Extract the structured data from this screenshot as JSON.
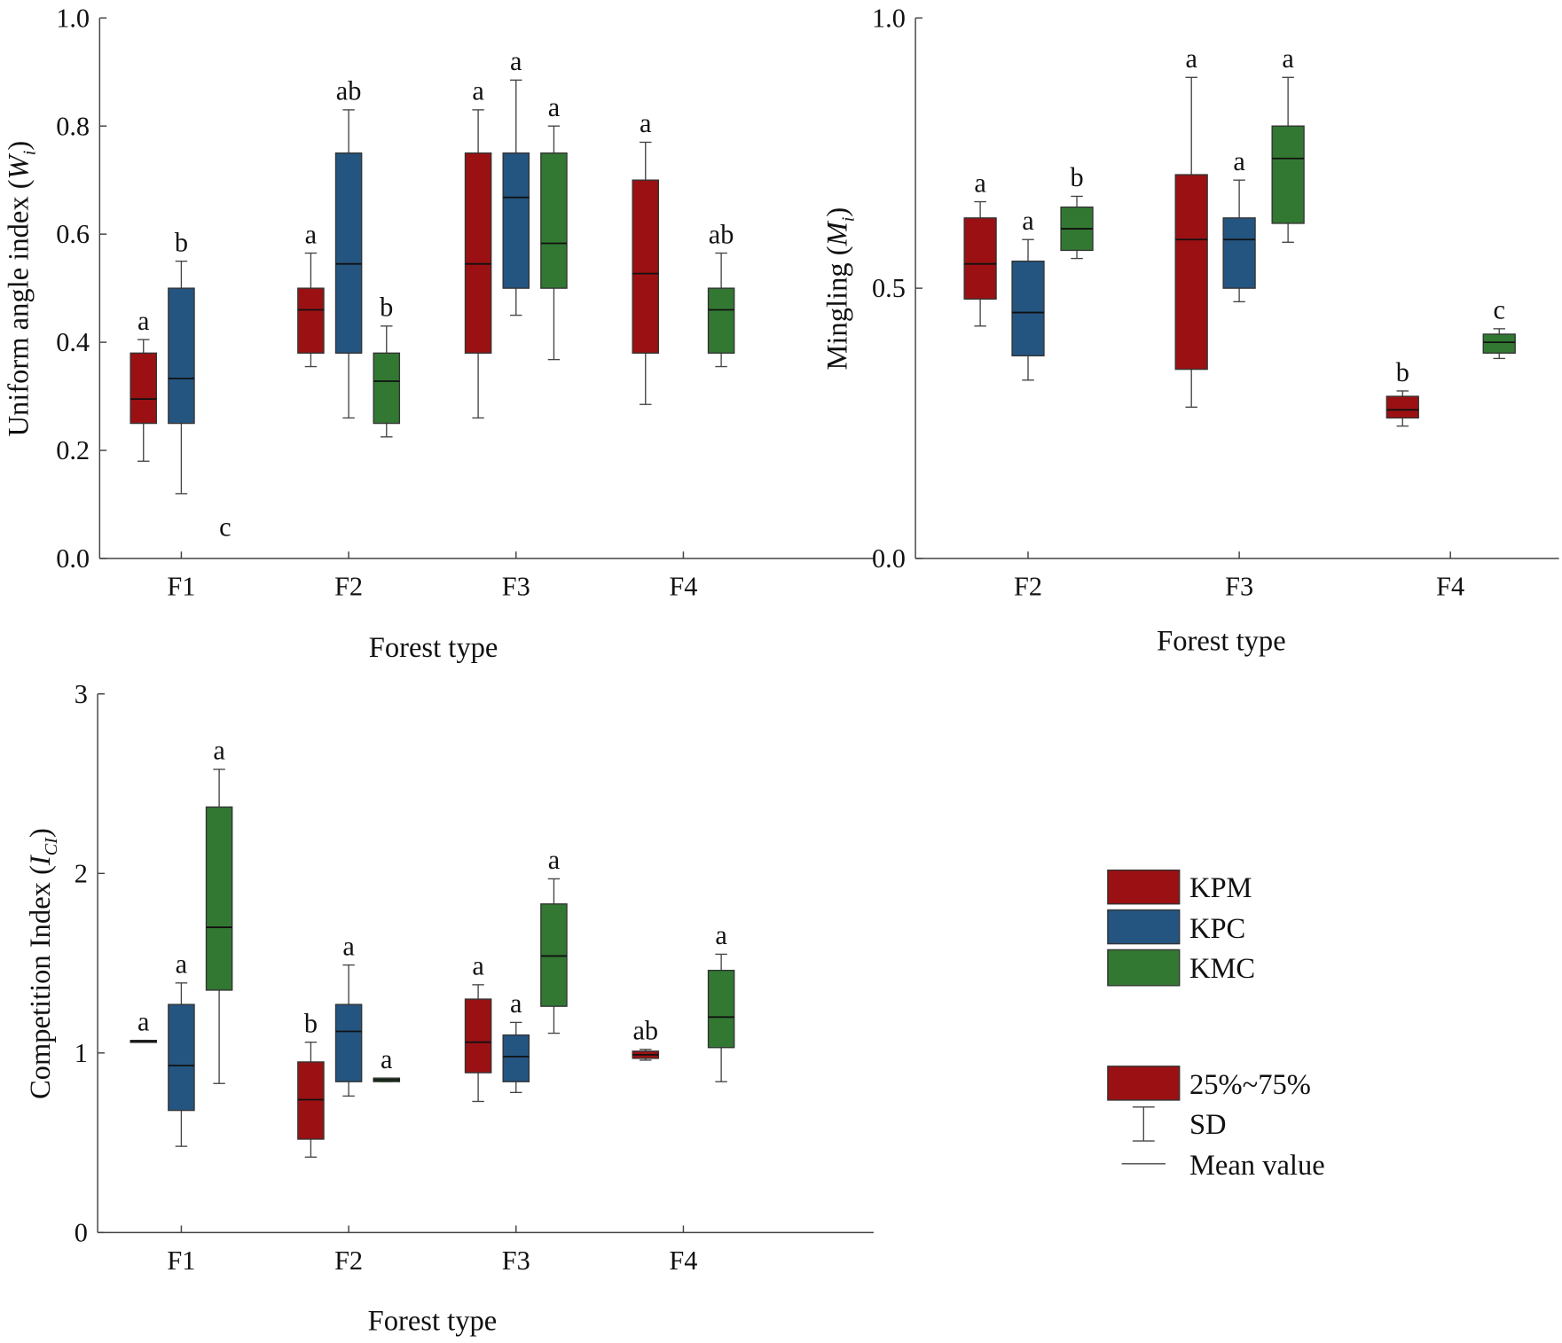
{
  "colors": {
    "KPM": "#9b1113",
    "KPC": "#245581",
    "KMC": "#327832"
  },
  "legend": {
    "series": [
      "KPM",
      "KPC",
      "KMC"
    ],
    "box_label": "25%~75%",
    "sd_label": "SD",
    "mean_label": "Mean value"
  },
  "chart_data": [
    {
      "type": "box",
      "xlabel": "Forest type",
      "ylabel": {
        "prefix": "Uniform angle index (",
        "var": "W",
        "sub": "i",
        "suffix": ")"
      },
      "ylim": [
        0,
        1.0
      ],
      "yticks": [
        "0.0",
        "0.2",
        "0.4",
        "0.6",
        "0.8",
        "1.0"
      ],
      "yticks_values": [
        0,
        0.2,
        0.4,
        0.6,
        0.8,
        1.0
      ],
      "categories": [
        "F1",
        "F2",
        "F3",
        "F4"
      ],
      "series": [
        {
          "name": "KPM",
          "boxes": [
            {
              "cat": "F1",
              "low": 0.18,
              "q1": 0.25,
              "mean": 0.295,
              "q3": 0.38,
              "high": 0.405,
              "sig": "a"
            },
            {
              "cat": "F2",
              "low": 0.355,
              "q1": 0.38,
              "mean": 0.46,
              "q3": 0.5,
              "high": 0.565,
              "sig": "a"
            },
            {
              "cat": "F3",
              "low": 0.26,
              "q1": 0.38,
              "mean": 0.545,
              "q3": 0.75,
              "high": 0.83,
              "sig": "a"
            },
            {
              "cat": "F4",
              "low": 0.285,
              "q1": 0.38,
              "mean": 0.527,
              "q3": 0.7,
              "high": 0.77,
              "sig": "a"
            }
          ]
        },
        {
          "name": "KPC",
          "boxes": [
            {
              "cat": "F1",
              "low": 0.12,
              "q1": 0.25,
              "mean": 0.333,
              "q3": 0.5,
              "high": 0.55,
              "sig": "b"
            },
            {
              "cat": "F2",
              "low": 0.26,
              "q1": 0.38,
              "mean": 0.545,
              "q3": 0.75,
              "high": 0.83,
              "sig": "ab"
            },
            {
              "cat": "F3",
              "low": 0.45,
              "q1": 0.5,
              "mean": 0.668,
              "q3": 0.75,
              "high": 0.885,
              "sig": "a"
            }
          ]
        },
        {
          "name": "KMC",
          "boxes": [
            {
              "cat": "F1",
              "sig": "c",
              "sig_at": 0.06
            },
            {
              "cat": "F2",
              "low": 0.225,
              "q1": 0.25,
              "mean": 0.328,
              "q3": 0.38,
              "high": 0.43,
              "sig": "b"
            },
            {
              "cat": "F3",
              "low": 0.368,
              "q1": 0.5,
              "mean": 0.583,
              "q3": 0.75,
              "high": 0.8,
              "sig": "a"
            },
            {
              "cat": "F4",
              "low": 0.355,
              "q1": 0.38,
              "mean": 0.46,
              "q3": 0.5,
              "high": 0.565,
              "sig": "ab"
            }
          ]
        }
      ]
    },
    {
      "type": "box",
      "xlabel": "Forest type",
      "ylabel": {
        "prefix": "Mingling (",
        "var": "M",
        "sub": "i",
        "suffix": ")"
      },
      "ylim": [
        0,
        1.0
      ],
      "yticks": [
        "0.0",
        "0.5",
        "1.0"
      ],
      "yticks_values": [
        0,
        0.5,
        1.0
      ],
      "categories": [
        "F2",
        "F3",
        "F4"
      ],
      "series": [
        {
          "name": "KPM",
          "boxes": [
            {
              "cat": "F2",
              "low": 0.43,
              "q1": 0.48,
              "mean": 0.545,
              "q3": 0.63,
              "high": 0.66,
              "sig": "a"
            },
            {
              "cat": "F3",
              "low": 0.28,
              "q1": 0.35,
              "mean": 0.59,
              "q3": 0.71,
              "high": 0.89,
              "sig": "a"
            },
            {
              "cat": "F4",
              "low": 0.245,
              "q1": 0.26,
              "mean": 0.275,
              "q3": 0.3,
              "high": 0.31,
              "sig": "b"
            }
          ]
        },
        {
          "name": "KPC",
          "boxes": [
            {
              "cat": "F2",
              "low": 0.33,
              "q1": 0.375,
              "mean": 0.455,
              "q3": 0.55,
              "high": 0.59,
              "sig": "a"
            },
            {
              "cat": "F3",
              "low": 0.475,
              "q1": 0.5,
              "mean": 0.59,
              "q3": 0.63,
              "high": 0.7,
              "sig": "a"
            }
          ]
        },
        {
          "name": "KMC",
          "boxes": [
            {
              "cat": "F2",
              "low": 0.555,
              "q1": 0.57,
              "mean": 0.61,
              "q3": 0.65,
              "high": 0.67,
              "sig": "b"
            },
            {
              "cat": "F3",
              "low": 0.585,
              "q1": 0.62,
              "mean": 0.74,
              "q3": 0.8,
              "high": 0.89,
              "sig": "a"
            },
            {
              "cat": "F4",
              "low": 0.37,
              "q1": 0.38,
              "mean": 0.4,
              "q3": 0.415,
              "high": 0.425,
              "sig": "c"
            }
          ]
        }
      ]
    },
    {
      "type": "box",
      "xlabel": "Forest type",
      "ylabel": {
        "prefix": "Competition Index (",
        "var": "I",
        "sub": "CI",
        "suffix": ")"
      },
      "ylim": [
        0,
        3
      ],
      "yticks": [
        "0",
        "1",
        "2",
        "3"
      ],
      "yticks_values": [
        0,
        1,
        2,
        3
      ],
      "categories": [
        "F1",
        "F2",
        "F3",
        "F4"
      ],
      "series": [
        {
          "name": "KPM",
          "boxes": [
            {
              "cat": "F1",
              "low": 1.06,
              "q1": 1.06,
              "mean": 1.065,
              "q3": 1.07,
              "high": 1.07,
              "sig": "a"
            },
            {
              "cat": "F2",
              "low": 0.42,
              "q1": 0.52,
              "mean": 0.74,
              "q3": 0.95,
              "high": 1.06,
              "sig": "b"
            },
            {
              "cat": "F3",
              "low": 0.73,
              "q1": 0.89,
              "mean": 1.06,
              "q3": 1.3,
              "high": 1.38,
              "sig": "a"
            },
            {
              "cat": "F4",
              "low": 0.96,
              "q1": 0.97,
              "mean": 0.99,
              "q3": 1.01,
              "high": 1.02,
              "sig": "ab"
            }
          ]
        },
        {
          "name": "KPC",
          "boxes": [
            {
              "cat": "F1",
              "low": 0.48,
              "q1": 0.68,
              "mean": 0.93,
              "q3": 1.27,
              "high": 1.39,
              "sig": "a"
            },
            {
              "cat": "F2",
              "low": 0.76,
              "q1": 0.84,
              "mean": 1.12,
              "q3": 1.27,
              "high": 1.49,
              "sig": "a"
            },
            {
              "cat": "F3",
              "low": 0.78,
              "q1": 0.84,
              "mean": 0.98,
              "q3": 1.1,
              "high": 1.17,
              "sig": "a"
            }
          ]
        },
        {
          "name": "KMC",
          "boxes": [
            {
              "cat": "F1",
              "low": 0.83,
              "q1": 1.35,
              "mean": 1.7,
              "q3": 2.37,
              "high": 2.58,
              "sig": "a"
            },
            {
              "cat": "F2",
              "low": 0.84,
              "q1": 0.84,
              "mean": 0.85,
              "q3": 0.86,
              "high": 0.86,
              "sig": "a"
            },
            {
              "cat": "F3",
              "low": 1.11,
              "q1": 1.26,
              "mean": 1.54,
              "q3": 1.83,
              "high": 1.97,
              "sig": "a"
            },
            {
              "cat": "F4",
              "low": 0.84,
              "q1": 1.03,
              "mean": 1.2,
              "q3": 1.46,
              "high": 1.55,
              "sig": "a"
            }
          ]
        }
      ]
    }
  ]
}
